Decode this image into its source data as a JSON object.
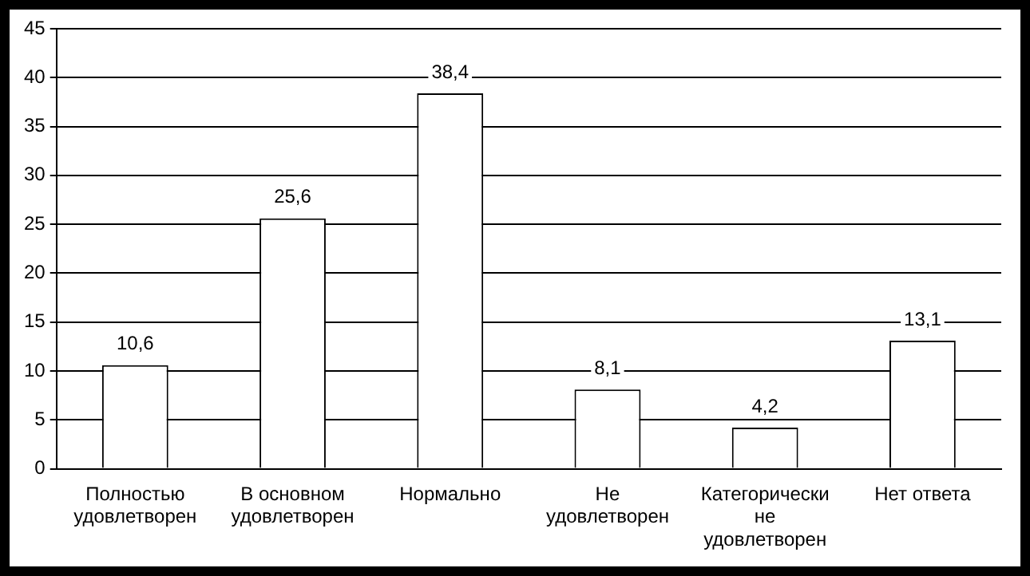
{
  "chart_data": {
    "type": "bar",
    "categories": [
      "Полностью удовлетворен",
      "В основном удовлетворен",
      "Нормально",
      "Не удовлетворен",
      "Категорически не удовлетворен",
      "Нет ответа"
    ],
    "values": [
      10.6,
      25.6,
      38.4,
      8.1,
      4.2,
      13.1
    ],
    "value_labels": [
      "10,6",
      "25,6",
      "38,4",
      "8,1",
      "4,2",
      "13,1"
    ],
    "color": "#ffffff",
    "ylim": [
      0,
      45
    ],
    "yticks": [
      0,
      5,
      10,
      15,
      20,
      25,
      30,
      35,
      40,
      45
    ],
    "grid": "y",
    "legend": false
  }
}
